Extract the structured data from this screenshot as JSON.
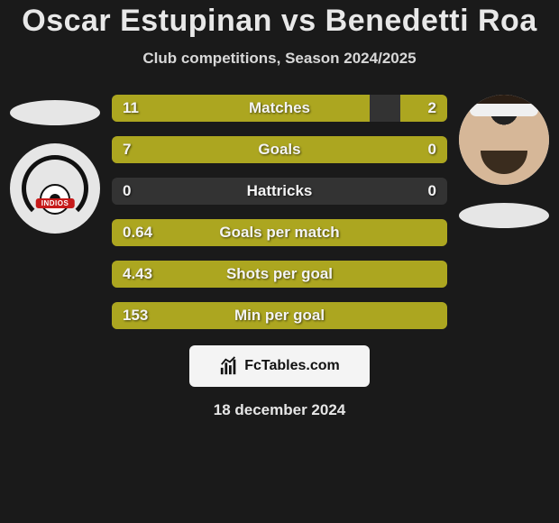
{
  "title": "Oscar Estupinan vs Benedetti Roa",
  "subtitle": "Club competitions, Season 2024/2025",
  "attribution": "FcTables.com",
  "footer_date": "18 december 2024",
  "colors": {
    "bar_fill": "#aca620",
    "bar_bg": "#333333",
    "page_bg": "#1a1a1a",
    "title_color": "#e8e8e8",
    "attrib_bg": "#f4f4f4"
  },
  "left_team_badge": "INDIOS",
  "rows": [
    {
      "label": "Matches",
      "left": "11",
      "right": "2",
      "left_pct": 77,
      "right_pct": 14
    },
    {
      "label": "Goals",
      "left": "7",
      "right": "0",
      "left_pct": 100,
      "right_pct": 0
    },
    {
      "label": "Hattricks",
      "left": "0",
      "right": "0",
      "left_pct": 0,
      "right_pct": 0
    },
    {
      "label": "Goals per match",
      "left": "0.64",
      "right": "",
      "left_pct": 100,
      "right_pct": 0
    },
    {
      "label": "Shots per goal",
      "left": "4.43",
      "right": "",
      "left_pct": 100,
      "right_pct": 0
    },
    {
      "label": "Min per goal",
      "left": "153",
      "right": "",
      "left_pct": 100,
      "right_pct": 0
    }
  ]
}
